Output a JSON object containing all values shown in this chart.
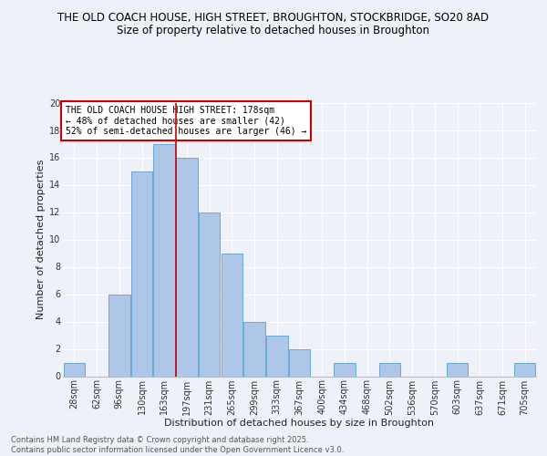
{
  "title_line1": "THE OLD COACH HOUSE, HIGH STREET, BROUGHTON, STOCKBRIDGE, SO20 8AD",
  "title_line2": "Size of property relative to detached houses in Broughton",
  "xlabel": "Distribution of detached houses by size in Broughton",
  "ylabel": "Number of detached properties",
  "categories": [
    "28sqm",
    "62sqm",
    "96sqm",
    "130sqm",
    "163sqm",
    "197sqm",
    "231sqm",
    "265sqm",
    "299sqm",
    "333sqm",
    "367sqm",
    "400sqm",
    "434sqm",
    "468sqm",
    "502sqm",
    "536sqm",
    "570sqm",
    "603sqm",
    "637sqm",
    "671sqm",
    "705sqm"
  ],
  "values": [
    1,
    0,
    6,
    15,
    17,
    16,
    12,
    9,
    4,
    3,
    2,
    0,
    1,
    0,
    1,
    0,
    0,
    1,
    0,
    0,
    1
  ],
  "bar_color": "#aec6e8",
  "bar_edge_color": "#6aaad4",
  "annotation_line1": "THE OLD COACH HOUSE HIGH STREET: 178sqm",
  "annotation_line2": "← 48% of detached houses are smaller (42)",
  "annotation_line3": "52% of semi-detached houses are larger (46) →",
  "annotation_box_facecolor": "#ffffff",
  "annotation_box_edgecolor": "#cc0000",
  "vertical_line_x": 4.5,
  "ylim": [
    0,
    20
  ],
  "yticks": [
    0,
    2,
    4,
    6,
    8,
    10,
    12,
    14,
    16,
    18,
    20
  ],
  "footnote_line1": "Contains HM Land Registry data © Crown copyright and database right 2025.",
  "footnote_line2": "Contains public sector information licensed under the Open Government Licence v3.0.",
  "bg_color": "#eef2f8",
  "grid_color": "#ffffff",
  "title_fontsize": 8.5,
  "subtitle_fontsize": 8.5,
  "axis_label_fontsize": 8,
  "tick_fontsize": 7,
  "annotation_fontsize": 7,
  "footnote_fontsize": 6
}
